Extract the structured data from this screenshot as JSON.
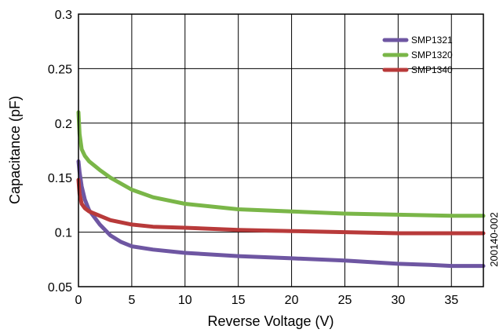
{
  "chart_data": {
    "type": "line",
    "title": "",
    "xlabel": "Reverse Voltage (V)",
    "ylabel": "Capacitance (pF)",
    "xlim": [
      0,
      38
    ],
    "ylim": [
      0.05,
      0.3
    ],
    "xticks": [
      0,
      5,
      10,
      15,
      20,
      25,
      30,
      35
    ],
    "xtick_labels": [
      "0",
      "5",
      "10",
      "15",
      "20",
      "25",
      "30",
      "35"
    ],
    "yticks": [
      0.05,
      0.1,
      0.15,
      0.2,
      0.25,
      0.3
    ],
    "ytick_labels": [
      "0.05",
      "0.1",
      "0.15",
      "0.2",
      "0.25",
      "0.3"
    ],
    "grid": true,
    "legend_position": "top-right",
    "figure_id": "200140-002",
    "series": [
      {
        "name": "SMP1321",
        "color": "#6e56a2",
        "x": [
          0,
          0.1,
          0.3,
          0.6,
          1,
          2,
          3,
          4,
          5,
          7,
          10,
          15,
          20,
          25,
          30,
          33,
          35,
          38
        ],
        "y": [
          0.165,
          0.155,
          0.142,
          0.13,
          0.12,
          0.107,
          0.097,
          0.091,
          0.087,
          0.084,
          0.081,
          0.078,
          0.076,
          0.074,
          0.071,
          0.07,
          0.069,
          0.069
        ]
      },
      {
        "name": "SMP1320",
        "color": "#7ab648",
        "x": [
          0,
          0.1,
          0.3,
          0.6,
          1,
          2,
          3,
          5,
          7,
          10,
          15,
          20,
          25,
          30,
          35,
          38
        ],
        "y": [
          0.21,
          0.19,
          0.176,
          0.17,
          0.165,
          0.157,
          0.15,
          0.139,
          0.132,
          0.126,
          0.121,
          0.119,
          0.117,
          0.116,
          0.115,
          0.115
        ]
      },
      {
        "name": "SMP1340",
        "color": "#b83a3a",
        "x": [
          0,
          0.1,
          0.3,
          0.6,
          1,
          2,
          3,
          5,
          7,
          10,
          15,
          20,
          25,
          30,
          35,
          38
        ],
        "y": [
          0.148,
          0.135,
          0.126,
          0.122,
          0.119,
          0.115,
          0.111,
          0.107,
          0.105,
          0.104,
          0.102,
          0.101,
          0.1,
          0.099,
          0.099,
          0.099
        ]
      }
    ]
  }
}
